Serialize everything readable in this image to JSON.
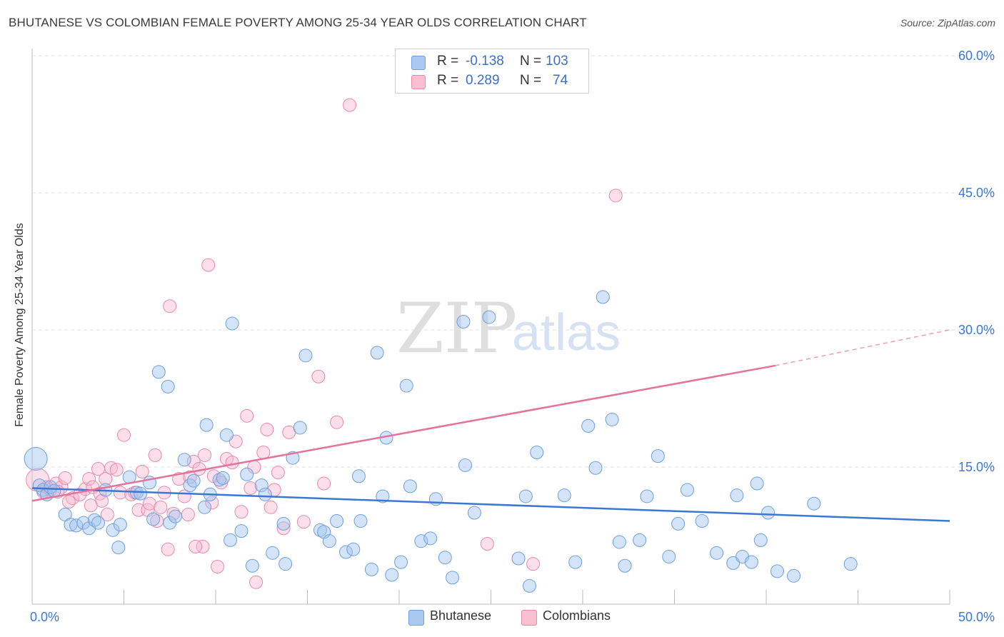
{
  "title": "BHUTANESE VS COLOMBIAN FEMALE POVERTY AMONG 25-34 YEAR OLDS CORRELATION CHART",
  "source": "Source: ZipAtlas.com",
  "watermark": {
    "zip": "ZIP",
    "atlas": "atlas"
  },
  "legend_top": [
    {
      "r_label": "R =",
      "r_value": "-0.138",
      "n_label": "N =",
      "n_value": "103",
      "color": "#aac8f0",
      "border": "#6f9fdc"
    },
    {
      "r_label": "R =",
      "r_value": "0.289",
      "n_label": "N =",
      "n_value": "74",
      "color": "#f9c0d2",
      "border": "#e88aa8"
    }
  ],
  "legend_bottom": [
    {
      "label": "Bhutanese",
      "color": "#aac8f0",
      "border": "#6f9fdc"
    },
    {
      "label": "Colombians",
      "color": "#f9c0d2",
      "border": "#e88aa8"
    }
  ],
  "chart_data": {
    "type": "scatter",
    "title": "BHUTANESE VS COLOMBIAN FEMALE POVERTY AMONG 25-34 YEAR OLDS CORRELATION CHART",
    "xlabel": "",
    "ylabel": "Female Poverty Among 25-34 Year Olds",
    "xlim": [
      0,
      50
    ],
    "ylim": [
      0,
      60
    ],
    "x_tick_labels": [
      {
        "value": 0,
        "label": "0.0%"
      },
      {
        "value": 50,
        "label": "50.0%"
      }
    ],
    "y_tick_labels": [
      {
        "value": 15,
        "label": "15.0%"
      },
      {
        "value": 30,
        "label": "30.0%"
      },
      {
        "value": 45,
        "label": "45.0%"
      },
      {
        "value": 60,
        "label": "60.0%"
      }
    ],
    "grid": true,
    "colors": {
      "bhutanese": "#3b78d4",
      "colombians": "#e5729b"
    },
    "series": [
      {
        "name": "Bhutanese",
        "color": "#3b78d4",
        "trend": {
          "x": [
            0,
            50
          ],
          "y": [
            12.7,
            9.1
          ]
        },
        "points": [
          [
            0.2,
            15.9
          ],
          [
            0.4,
            13.0
          ],
          [
            0.6,
            12.5
          ],
          [
            0.8,
            12.0
          ],
          [
            1.0,
            12.8
          ],
          [
            1.2,
            12.4
          ],
          [
            1.8,
            9.8
          ],
          [
            2.1,
            8.7
          ],
          [
            2.4,
            8.6
          ],
          [
            2.8,
            8.9
          ],
          [
            3.1,
            8.3
          ],
          [
            3.4,
            9.2
          ],
          [
            3.6,
            8.9
          ],
          [
            4.0,
            12.5
          ],
          [
            4.4,
            8.1
          ],
          [
            4.7,
            6.2
          ],
          [
            4.8,
            8.7
          ],
          [
            5.3,
            13.9
          ],
          [
            5.7,
            12.2
          ],
          [
            5.9,
            12.1
          ],
          [
            6.4,
            13.3
          ],
          [
            6.6,
            9.3
          ],
          [
            6.9,
            25.4
          ],
          [
            7.4,
            23.8
          ],
          [
            7.5,
            8.9
          ],
          [
            7.8,
            9.6
          ],
          [
            8.3,
            15.8
          ],
          [
            8.6,
            13.0
          ],
          [
            8.8,
            13.5
          ],
          [
            9.4,
            10.6
          ],
          [
            9.5,
            19.6
          ],
          [
            9.7,
            12.0
          ],
          [
            10.2,
            13.6
          ],
          [
            10.4,
            13.8
          ],
          [
            10.6,
            18.5
          ],
          [
            10.8,
            7.0
          ],
          [
            10.9,
            30.7
          ],
          [
            11.4,
            8.0
          ],
          [
            11.7,
            14.2
          ],
          [
            12.0,
            4.2
          ],
          [
            12.5,
            13.0
          ],
          [
            12.7,
            12.0
          ],
          [
            13.1,
            5.6
          ],
          [
            13.7,
            8.8
          ],
          [
            13.8,
            4.4
          ],
          [
            14.2,
            16.0
          ],
          [
            14.6,
            19.3
          ],
          [
            14.9,
            27.2
          ],
          [
            15.7,
            8.1
          ],
          [
            15.9,
            7.9
          ],
          [
            16.2,
            6.9
          ],
          [
            16.6,
            9.1
          ],
          [
            17.1,
            5.7
          ],
          [
            17.5,
            6.0
          ],
          [
            17.8,
            14.0
          ],
          [
            17.9,
            9.1
          ],
          [
            18.5,
            3.8
          ],
          [
            18.8,
            27.5
          ],
          [
            19.1,
            11.8
          ],
          [
            19.3,
            18.2
          ],
          [
            19.6,
            3.2
          ],
          [
            20.1,
            4.6
          ],
          [
            20.4,
            23.9
          ],
          [
            20.6,
            12.9
          ],
          [
            21.2,
            6.9
          ],
          [
            21.7,
            7.2
          ],
          [
            22.0,
            11.5
          ],
          [
            22.5,
            5.1
          ],
          [
            22.9,
            2.9
          ],
          [
            23.5,
            30.9
          ],
          [
            23.6,
            15.2
          ],
          [
            24.1,
            10.0
          ],
          [
            24.9,
            31.4
          ],
          [
            26.5,
            5.0
          ],
          [
            26.9,
            11.8
          ],
          [
            27.1,
            2.0
          ],
          [
            27.5,
            16.6
          ],
          [
            29.0,
            11.9
          ],
          [
            29.6,
            4.6
          ],
          [
            30.3,
            19.5
          ],
          [
            30.7,
            14.9
          ],
          [
            31.1,
            33.6
          ],
          [
            31.6,
            20.2
          ],
          [
            32.0,
            6.8
          ],
          [
            32.3,
            4.2
          ],
          [
            33.1,
            7.0
          ],
          [
            33.5,
            11.8
          ],
          [
            34.1,
            16.2
          ],
          [
            34.7,
            5.2
          ],
          [
            35.2,
            8.8
          ],
          [
            35.7,
            12.5
          ],
          [
            36.5,
            9.1
          ],
          [
            37.3,
            5.6
          ],
          [
            38.2,
            4.5
          ],
          [
            38.4,
            11.9
          ],
          [
            38.7,
            5.2
          ],
          [
            39.2,
            4.6
          ],
          [
            39.5,
            13.2
          ],
          [
            39.7,
            7.0
          ],
          [
            40.1,
            10.0
          ],
          [
            40.6,
            3.6
          ],
          [
            41.5,
            3.1
          ],
          [
            42.6,
            11.0
          ],
          [
            44.6,
            4.4
          ]
        ]
      },
      {
        "name": "Colombians",
        "color": "#e5729b",
        "trend": {
          "x": [
            0,
            40.5
          ],
          "y": [
            11.3,
            26.1
          ]
        },
        "trend_dashed": {
          "x": [
            40.5,
            50
          ],
          "y": [
            26.1,
            30.0
          ]
        },
        "points": [
          [
            0.3,
            13.6
          ],
          [
            0.6,
            12.3
          ],
          [
            0.8,
            12.8
          ],
          [
            1.0,
            12.5
          ],
          [
            1.3,
            13.2
          ],
          [
            1.6,
            12.8
          ],
          [
            1.8,
            13.8
          ],
          [
            2.2,
            11.6
          ],
          [
            2.6,
            12.0
          ],
          [
            2.9,
            12.6
          ],
          [
            3.1,
            13.7
          ],
          [
            3.3,
            12.8
          ],
          [
            3.6,
            14.8
          ],
          [
            3.7,
            12.1
          ],
          [
            3.8,
            11.3
          ],
          [
            4.0,
            13.7
          ],
          [
            4.3,
            14.9
          ],
          [
            4.6,
            14.7
          ],
          [
            4.8,
            12.2
          ],
          [
            5.0,
            18.5
          ],
          [
            5.4,
            12.0
          ],
          [
            5.8,
            10.3
          ],
          [
            6.0,
            14.5
          ],
          [
            6.3,
            10.3
          ],
          [
            6.4,
            11.0
          ],
          [
            6.7,
            16.3
          ],
          [
            7.0,
            10.6
          ],
          [
            7.2,
            12.2
          ],
          [
            7.4,
            6.0
          ],
          [
            7.5,
            32.6
          ],
          [
            7.7,
            9.9
          ],
          [
            8.0,
            13.7
          ],
          [
            8.3,
            11.8
          ],
          [
            8.5,
            9.8
          ],
          [
            8.8,
            15.6
          ],
          [
            9.1,
            14.8
          ],
          [
            9.3,
            6.3
          ],
          [
            9.4,
            16.3
          ],
          [
            9.6,
            37.1
          ],
          [
            9.9,
            14.0
          ],
          [
            10.1,
            4.1
          ],
          [
            10.3,
            13.3
          ],
          [
            10.6,
            15.9
          ],
          [
            10.9,
            15.5
          ],
          [
            11.1,
            17.8
          ],
          [
            11.4,
            10.1
          ],
          [
            11.7,
            20.6
          ],
          [
            12.1,
            15.0
          ],
          [
            12.6,
            16.6
          ],
          [
            12.8,
            19.1
          ],
          [
            13.0,
            10.6
          ],
          [
            13.2,
            12.5
          ],
          [
            13.7,
            8.3
          ],
          [
            14.0,
            18.8
          ],
          [
            14.8,
            9.0
          ],
          [
            15.6,
            24.9
          ],
          [
            15.9,
            13.2
          ],
          [
            16.6,
            19.9
          ],
          [
            17.3,
            54.6
          ],
          [
            24.8,
            6.6
          ],
          [
            27.3,
            4.4
          ],
          [
            31.8,
            44.7
          ],
          [
            8.9,
            6.3
          ],
          [
            12.2,
            2.4
          ],
          [
            5.6,
            12.2
          ],
          [
            2.0,
            11.2
          ],
          [
            4.1,
            9.8
          ],
          [
            6.8,
            9.1
          ],
          [
            3.2,
            10.8
          ],
          [
            1.4,
            12.3
          ],
          [
            9.8,
            11.1
          ],
          [
            11.9,
            12.7
          ],
          [
            13.4,
            14.4
          ],
          [
            8.6,
            13.9
          ]
        ]
      }
    ]
  }
}
